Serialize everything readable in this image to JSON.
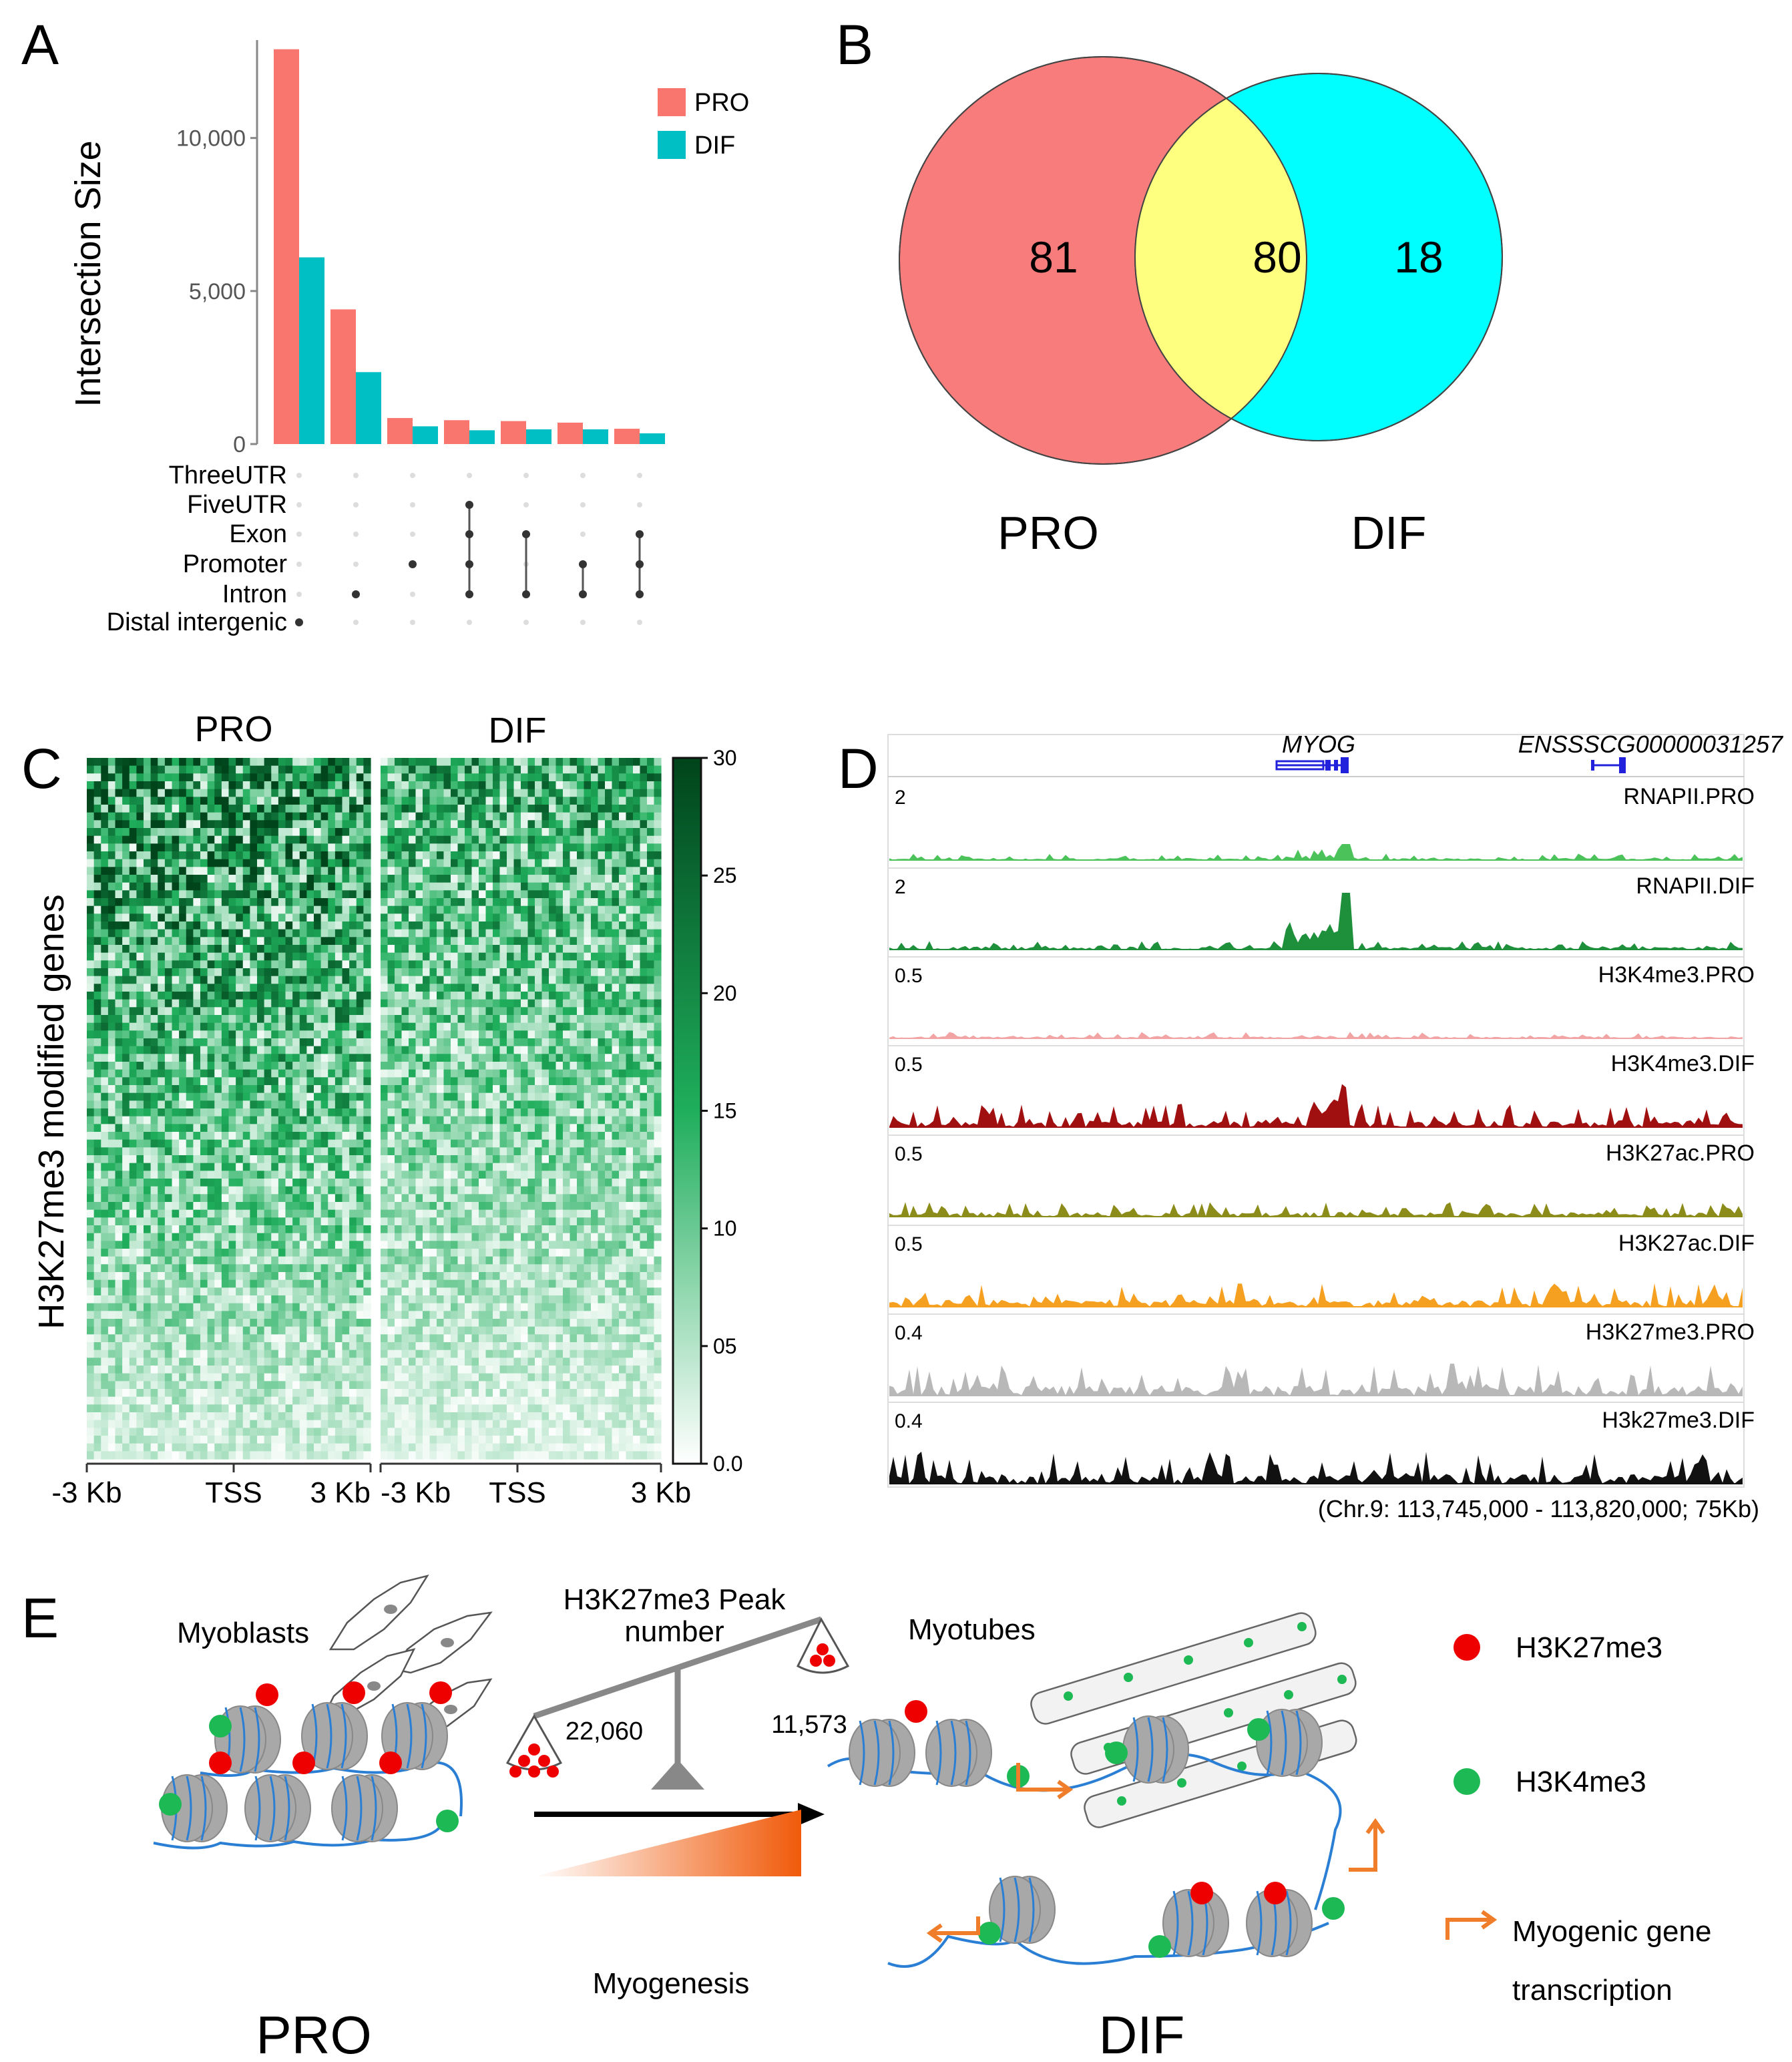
{
  "panels": {
    "A": "A",
    "B": "B",
    "C": "C",
    "D": "D",
    "E": "E"
  },
  "colors": {
    "pro": "#f8766d",
    "dif": "#00bfc4",
    "venn_overlap": "#ffff7f",
    "venn_dif": "#00ffff",
    "heat_max": "#00441b",
    "gene": "#2222dd",
    "arrow": "#f07d2a",
    "red": "#ee0000",
    "green": "#1db954"
  },
  "chart_data": [
    {
      "type": "bar",
      "panel": "A",
      "ylabel": "Intersection Size",
      "yticks": [
        "0",
        "5,000",
        "10,000"
      ],
      "ytick_values": [
        0,
        5000,
        10000
      ],
      "ylim": [
        0,
        13200
      ],
      "legend": [
        "PRO",
        "DIF"
      ],
      "legend_position": "top-right",
      "series": [
        {
          "name": "PRO",
          "values": [
            12900,
            4400,
            850,
            780,
            750,
            700,
            500
          ]
        },
        {
          "name": "DIF",
          "values": [
            6100,
            2350,
            580,
            450,
            480,
            480,
            350
          ]
        }
      ],
      "sets": [
        "ThreeUTR",
        "FiveUTR",
        "Exon",
        "Promoter",
        "Intron",
        "Distal intergenic"
      ],
      "combinations": [
        [
          5
        ],
        [
          4
        ],
        [
          3
        ],
        [
          1,
          2,
          3,
          4
        ],
        [
          2,
          4
        ],
        [
          3,
          4
        ],
        [
          2,
          3,
          4
        ]
      ]
    },
    {
      "type": "venn",
      "panel": "B",
      "labels": [
        "PRO",
        "DIF"
      ],
      "values": {
        "pro_only": "81",
        "overlap": "80",
        "dif_only": "18"
      }
    },
    {
      "type": "heatmap",
      "panel": "C",
      "ylabel": "H3K27me3 modified genes",
      "titles": [
        "PRO",
        "DIF"
      ],
      "xticks": [
        "-3 Kb",
        "TSS",
        "3 Kb",
        "-3 Kb",
        "TSS",
        "3 Kb"
      ],
      "colorbar_ticks": [
        "30",
        "25",
        "20",
        "15",
        "10",
        "05",
        "0.0"
      ],
      "colorbar_values": [
        30,
        25,
        20,
        15,
        10,
        5,
        0
      ],
      "range": [
        0,
        30
      ]
    }
  ],
  "panelD": {
    "genes": [
      "MYOG",
      "ENSSSCG00000031257"
    ],
    "tracks": [
      {
        "name": "RNAPII.PRO",
        "scale": "2"
      },
      {
        "name": "RNAPII.DIF",
        "scale": "2"
      },
      {
        "name": "H3K4me3.PRO",
        "scale": "0.5"
      },
      {
        "name": "H3K4me3.DIF",
        "scale": "0.5"
      },
      {
        "name": "H3K27ac.PRO",
        "scale": "0.5"
      },
      {
        "name": "H3K27ac.DIF",
        "scale": "0.5"
      },
      {
        "name": "H3K27me3.PRO",
        "scale": "0.4"
      },
      {
        "name": "H3k27me3.DIF",
        "scale": "0.4"
      }
    ],
    "locus": "(Chr.9: 113,745,000 - 113,820,000; 75Kb)"
  },
  "panelE": {
    "myoblasts": "Myoblasts",
    "myotubes": "Myotubes",
    "peak_title_1": "H3K27me3 Peak",
    "peak_title_2": "number",
    "pro_peaks": "22,060",
    "dif_peaks": "11,573",
    "myogenesis": "Myogenesis",
    "pro_label": "PRO",
    "dif_label": "DIF",
    "legend": {
      "h3k27me3": "H3K27me3",
      "h3k4me3": "H3K4me3",
      "transcription_1": "Myogenic gene",
      "transcription_2": "transcription"
    }
  }
}
